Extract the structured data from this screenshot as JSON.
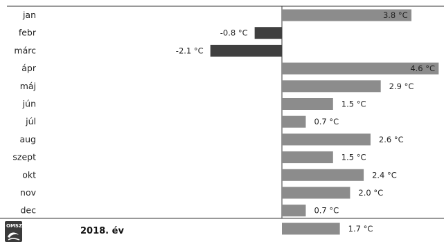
{
  "chart_data": {
    "type": "bar",
    "orientation": "horizontal",
    "categories": [
      "jan",
      "febr",
      "márc",
      "ápr",
      "máj",
      "jún",
      "júl",
      "aug",
      "szept",
      "okt",
      "nov",
      "dec"
    ],
    "values": [
      3.8,
      -0.8,
      -2.1,
      4.6,
      2.9,
      1.5,
      0.7,
      2.6,
      1.5,
      2.4,
      2.0,
      0.7
    ],
    "value_labels": [
      "3.8 °C",
      "-0.8 °C",
      "-2.1 °C",
      "4.6 °C",
      "2.9 °C",
      "1.5 °C",
      "0.7 °C",
      "2.6 °C",
      "1.5 °C",
      "2.4 °C",
      "2.0 °C",
      "0.7 °C"
    ],
    "annual": {
      "label": "2018. év",
      "value": 1.7,
      "value_label": "1.7 °C"
    },
    "xlim": [
      -2.5,
      4.8
    ],
    "grid": false,
    "colors": {
      "positive": "#8c8c8c",
      "negative": "#3f3f3f",
      "axis": "#333333"
    }
  },
  "logo": {
    "text": "OMSZ"
  }
}
